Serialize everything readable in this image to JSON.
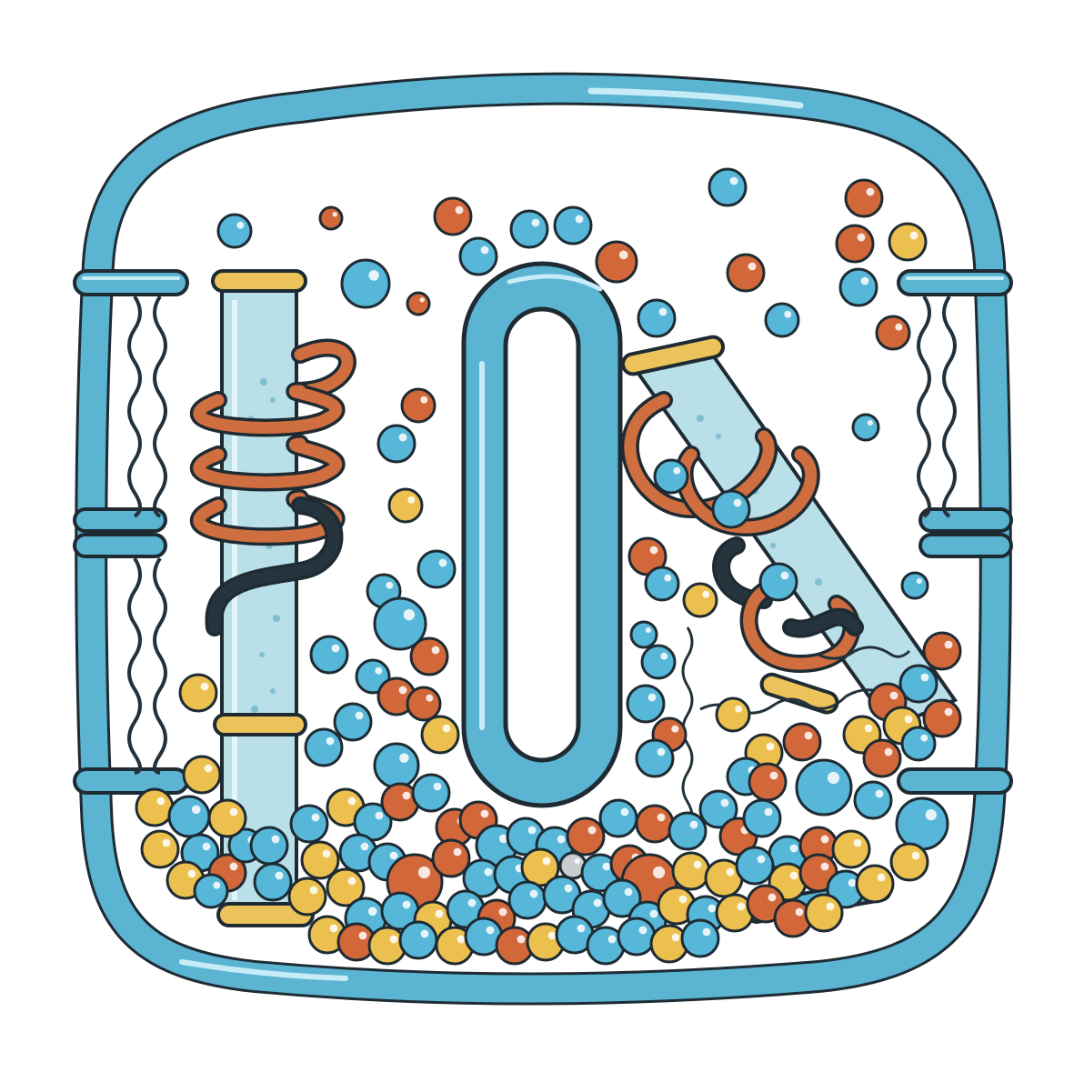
{
  "colors": {
    "background": "#ffffff",
    "outline": "#1e2b33",
    "tube_blue": "#5ab4d2",
    "tube_highlight": "#c7ecf7",
    "column_fill": "#b9dfe9",
    "column_dots": "#7fbfd0",
    "cap_yellow": "#ecc25a",
    "bead_blue": "#56b7d9",
    "bead_orange": "#d2683a",
    "bead_yellow": "#ecc04f",
    "bead_gray": "#c9cdd0",
    "coil_orange": "#cf6e3f",
    "coil_dark": "#26343d",
    "spring_dark": "#24313a"
  },
  "icons": {
    "frame": "rounded-square-tube-frame",
    "left_column": "vertical-glass-column",
    "right_column": "tilted-glass-column",
    "center_loop": "elongated-loop-tube",
    "coils": "copper-coil",
    "springs": "zigzag-spring",
    "beads": "molecule-bead"
  }
}
